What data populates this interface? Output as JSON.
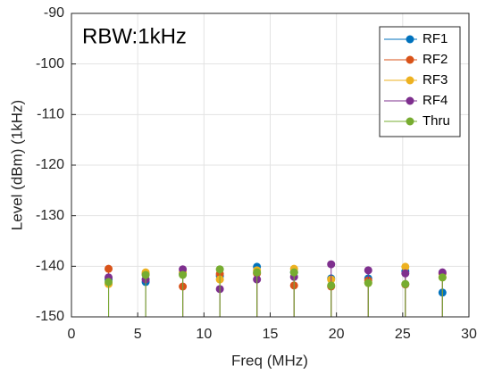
{
  "chart_data": {
    "type": "stem",
    "annotation": "RBW:1kHz",
    "xlabel": "Freq (MHz)",
    "ylabel": "Level (dBm) (1kHz)",
    "x": [
      2.8,
      5.6,
      8.4,
      11.2,
      14.0,
      16.8,
      19.6,
      22.4,
      25.2,
      28.0
    ],
    "series": [
      {
        "name": "RF1",
        "color": "#0072bd",
        "values": [
          -142.6,
          -143.1,
          -141.5,
          -141.9,
          -140.1,
          -141.2,
          -142.4,
          -142.4,
          -141.0,
          -145.2
        ]
      },
      {
        "name": "RF2",
        "color": "#d95319",
        "values": [
          -140.5,
          -141.5,
          -144.0,
          -141.5,
          -141.4,
          -143.8,
          -144.0,
          -142.8,
          -143.6,
          -141.4
        ]
      },
      {
        "name": "RF3",
        "color": "#edb120",
        "values": [
          -143.5,
          -141.2,
          -141.2,
          -142.6,
          -140.8,
          -140.5,
          -142.6,
          -143.3,
          -140.1,
          -142.2
        ]
      },
      {
        "name": "RF4",
        "color": "#7e2f8e",
        "values": [
          -142.2,
          -142.6,
          -140.6,
          -144.5,
          -142.6,
          -142.1,
          -139.6,
          -140.8,
          -141.4,
          -141.2
        ]
      },
      {
        "name": "Thru",
        "color": "#77ac30",
        "values": [
          -143.1,
          -141.7,
          -141.7,
          -140.6,
          -141.2,
          -141.2,
          -143.8,
          -143.3,
          -143.5,
          -142.2
        ]
      }
    ],
    "xlim": [
      0,
      30
    ],
    "xticks": [
      0,
      5,
      10,
      15,
      20,
      25,
      30
    ],
    "ylim": [
      -150,
      -90
    ],
    "yticks": [
      -150,
      -140,
      -130,
      -120,
      -110,
      -100,
      -90
    ],
    "grid": true,
    "legend": "upper right"
  }
}
